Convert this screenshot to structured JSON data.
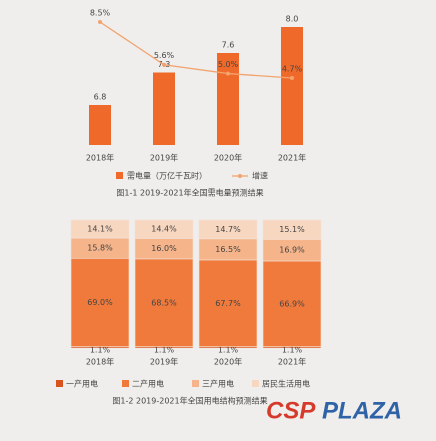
{
  "chart_data": [
    {
      "type": "bar",
      "caption": "图1-1   2019-2021年全国需电量预测结果",
      "categories": [
        "2018年",
        "2019年",
        "2020年",
        "2021年"
      ],
      "series": [
        {
          "name": "需电量（万亿千瓦时）",
          "type": "bar",
          "color": "#ef6a2a",
          "values": [
            6.8,
            7.3,
            7.6,
            8.0
          ],
          "value_labels": [
            "6.8",
            "7.3",
            "7.6",
            "8.0"
          ]
        },
        {
          "name": "增速",
          "type": "line",
          "color": "#f2a36e",
          "values": [
            8.5,
            5.6,
            5.0,
            4.7
          ],
          "value_labels": [
            "8.5%",
            "5.6%",
            "5.0%",
            "4.7%"
          ]
        }
      ]
    },
    {
      "type": "stacked_bar",
      "caption": "图1-2   2019-2021年全国用电结构预测结果",
      "categories": [
        "2018年",
        "2019年",
        "2020年",
        "2021年"
      ],
      "series": [
        {
          "name": "一产用电",
          "color": "#d9531e",
          "values": [
            1.1,
            1.1,
            1.1,
            1.1
          ],
          "value_labels": [
            "1.1%",
            "1.1%",
            "1.1%",
            "1.1%"
          ]
        },
        {
          "name": "二产用电",
          "color": "#f07a3c",
          "values": [
            69.0,
            68.5,
            67.7,
            66.9
          ],
          "value_labels": [
            "69.0%",
            "68.5%",
            "67.7%",
            "66.9%"
          ]
        },
        {
          "name": "三产用电",
          "color": "#f5b48a",
          "values": [
            15.8,
            16.0,
            16.5,
            16.9
          ],
          "value_labels": [
            "15.8%",
            "16.0%",
            "16.5%",
            "16.9%"
          ]
        },
        {
          "name": "居民生活用电",
          "color": "#f8d7c0",
          "values": [
            14.1,
            14.4,
            14.7,
            15.1
          ],
          "value_labels": [
            "14.1%",
            "14.4%",
            "14.7%",
            "15.1%"
          ]
        }
      ]
    }
  ],
  "watermark": {
    "part1": "CSP",
    "part2": "PLAZA"
  }
}
